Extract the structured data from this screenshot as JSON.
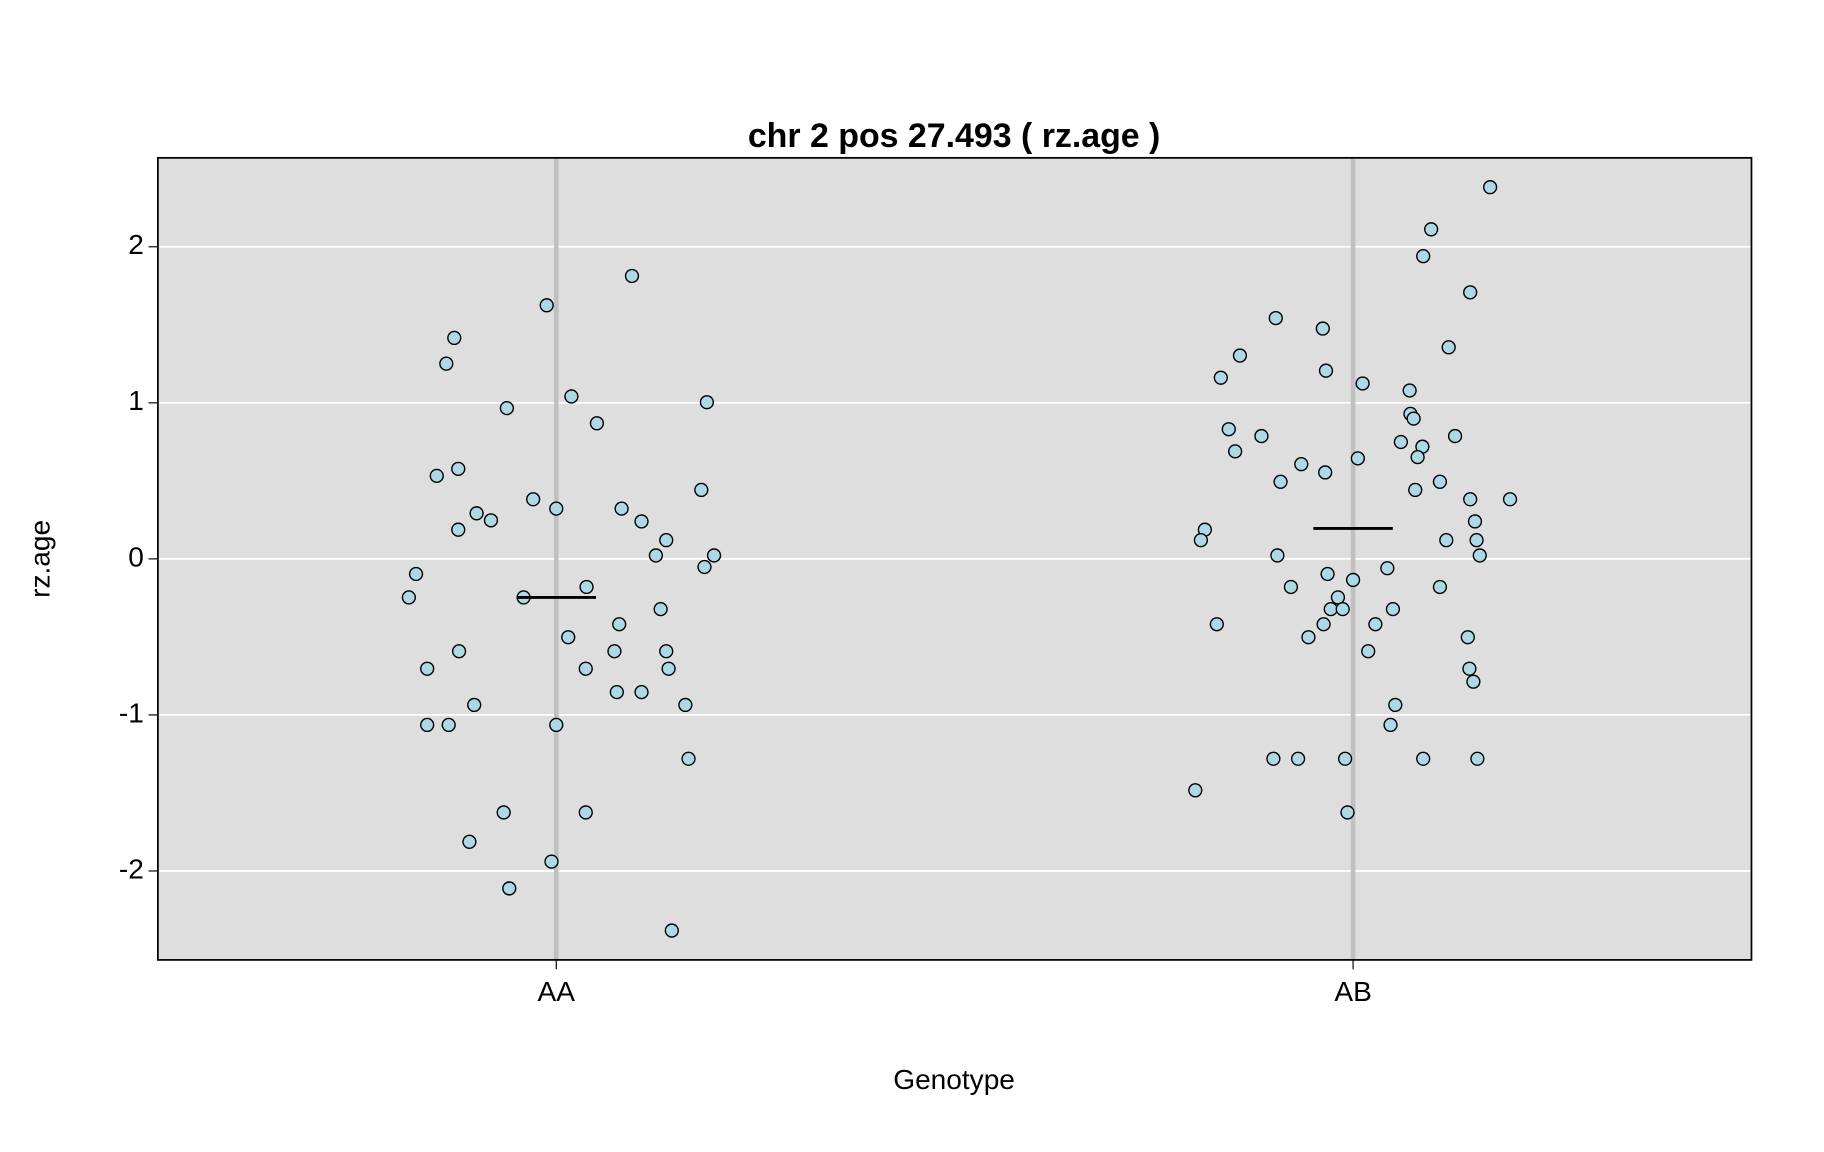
{
  "chart_data": {
    "type": "scatter",
    "title": "chr 2 pos 27.493 ( rz.age )",
    "xlabel": "Genotype",
    "ylabel": "rz.age",
    "xlim": [
      0.5,
      2.5
    ],
    "ylim": [
      -2.57,
      2.57
    ],
    "xticks": [
      {
        "value": 1,
        "label": "AA"
      },
      {
        "value": 2,
        "label": "AB"
      }
    ],
    "yticks": [
      -2,
      -1,
      0,
      1,
      2
    ],
    "grid": true,
    "color": "#add8e6",
    "background": "#dedede",
    "means": [
      -0.247,
      0.195
    ],
    "x": [
      0.872,
      0.862,
      0.988,
      1.095,
      0.938,
      1.019,
      1.051,
      1.189,
      0.85,
      0.877,
      0.971,
      1.0,
      0.9,
      0.918,
      0.877,
      1.082,
      1.107,
      1.182,
      1.138,
      1.125,
      1.198,
      1.186,
      0.824,
      0.815,
      0.959,
      1.038,
      1.131,
      1.079,
      1.015,
      0.878,
      1.073,
      1.138,
      0.838,
      1.037,
      1.141,
      1.076,
      1.107,
      0.897,
      1.162,
      0.838,
      0.865,
      1.0,
      1.166,
      0.934,
      1.037,
      0.891,
      0.994,
      0.941,
      1.145,
      2.172,
      2.098,
      2.088,
      2.147,
      1.903,
      1.962,
      2.12,
      1.858,
      1.834,
      1.966,
      2.012,
      2.071,
      2.072,
      2.076,
      1.844,
      1.885,
      2.128,
      2.06,
      2.087,
      1.852,
      2.081,
      2.006,
      1.935,
      1.965,
      1.909,
      2.109,
      2.078,
      2.147,
      2.197,
      2.153,
      1.814,
      1.809,
      2.117,
      2.155,
      1.905,
      2.159,
      2.043,
      1.968,
      2.0,
      1.922,
      2.109,
      1.981,
      1.972,
      1.987,
      2.05,
      1.829,
      1.963,
      2.028,
      1.944,
      2.144,
      2.019,
      2.146,
      2.151,
      2.053,
      2.047,
      1.9,
      1.931,
      1.99,
      2.088,
      2.156,
      1.802,
      1.993
    ],
    "y": [
      1.416,
      1.251,
      1.625,
      1.813,
      0.966,
      1.041,
      0.869,
      1.004,
      0.532,
      0.577,
      0.382,
      0.322,
      0.292,
      0.247,
      0.187,
      0.322,
      0.24,
      0.442,
      0.12,
      0.022,
      0.022,
      -0.052,
      -0.097,
      -0.247,
      -0.247,
      -0.18,
      -0.322,
      -0.419,
      -0.502,
      -0.592,
      -0.592,
      -0.592,
      -0.704,
      -0.704,
      -0.704,
      -0.854,
      -0.854,
      -0.936,
      -0.936,
      -1.064,
      -1.064,
      -1.064,
      -1.281,
      -1.625,
      -1.625,
      -1.813,
      -1.94,
      -2.112,
      -2.382,
      2.382,
      2.112,
      1.94,
      1.708,
      1.543,
      1.476,
      1.356,
      1.303,
      1.161,
      1.206,
      1.124,
      1.079,
      0.929,
      0.899,
      0.831,
      0.787,
      0.787,
      0.749,
      0.719,
      0.689,
      0.652,
      0.644,
      0.607,
      0.554,
      0.494,
      0.494,
      0.442,
      0.382,
      0.382,
      0.24,
      0.187,
      0.12,
      0.12,
      0.12,
      0.022,
      0.022,
      -0.06,
      -0.097,
      -0.135,
      -0.18,
      -0.18,
      -0.247,
      -0.322,
      -0.322,
      -0.322,
      -0.419,
      -0.419,
      -0.419,
      -0.502,
      -0.502,
      -0.592,
      -0.704,
      -0.787,
      -0.936,
      -1.064,
      -1.281,
      -1.281,
      -1.281,
      -1.281,
      -1.281,
      -1.483,
      -1.625
    ]
  }
}
